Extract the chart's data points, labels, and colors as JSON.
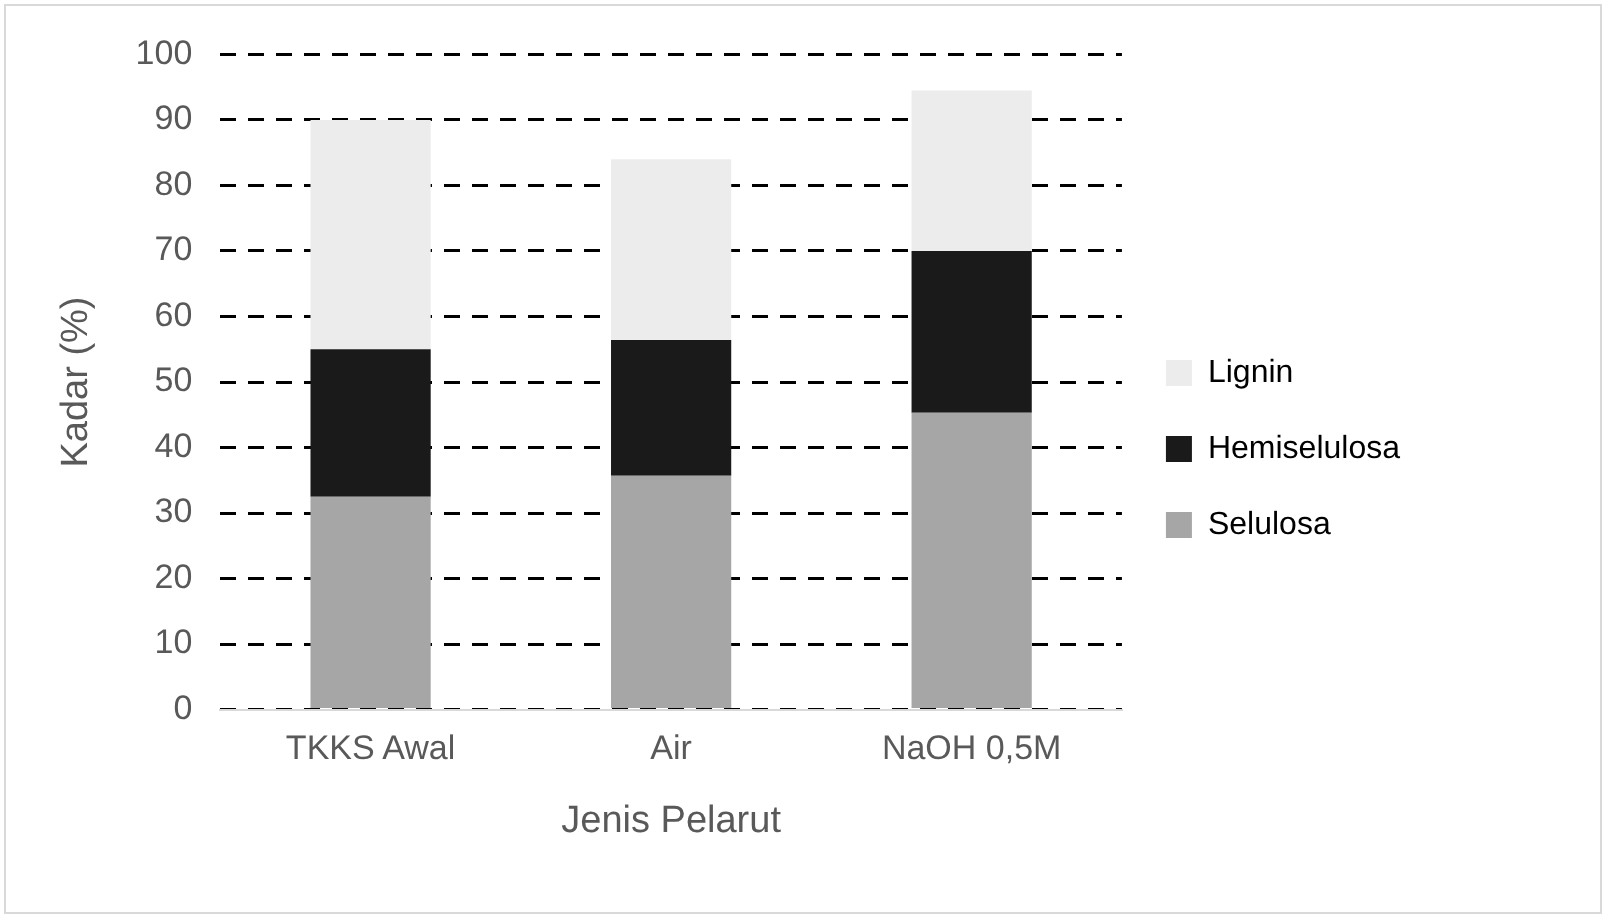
{
  "chart_data": {
    "type": "bar",
    "stacked": true,
    "xlabel": "Jenis Pelarut",
    "ylabel": "Kadar (%)",
    "categories": [
      "TKKS Awal",
      "Air",
      "NaOH 0,5M"
    ],
    "series": [
      {
        "name": "Selulosa",
        "color": "#a6a6a6",
        "values": [
          32.5,
          35.7,
          45.3
        ]
      },
      {
        "name": "Hemiselulosa",
        "color": "#1a1a1a",
        "values": [
          22.5,
          20.7,
          24.7
        ]
      },
      {
        "name": "Lignin",
        "color": "#ececec",
        "values": [
          35,
          27.6,
          24.5
        ]
      }
    ],
    "ylim": [
      0,
      100
    ],
    "yticks": [
      0,
      10,
      20,
      30,
      40,
      50,
      60,
      70,
      80,
      90,
      100
    ],
    "grid": "y",
    "legend": "right"
  }
}
